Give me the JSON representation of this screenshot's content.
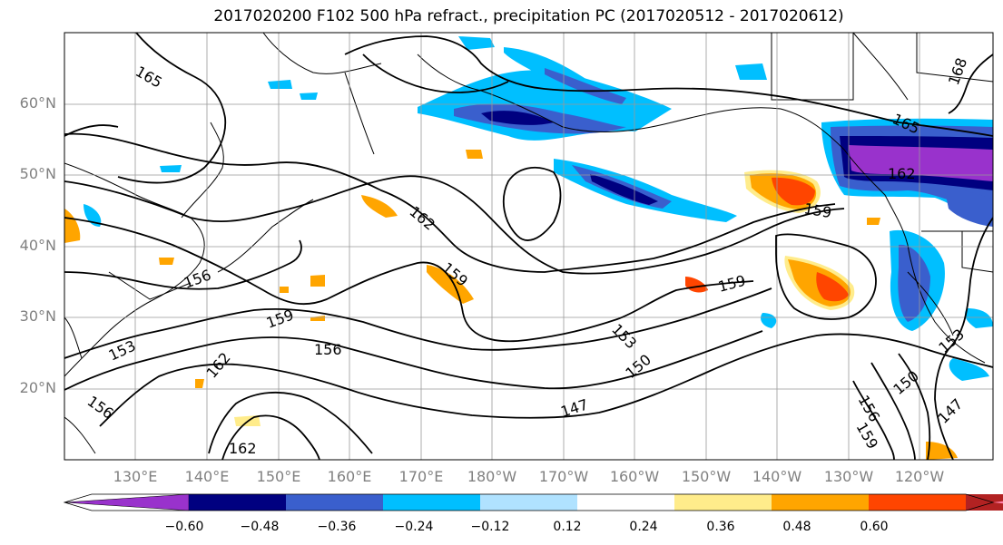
{
  "title": "2017020200 F102 500 hPa refract., precipitation PC (2017020512 - 2017020612)",
  "lat_labels": [
    "60°N",
    "50°N",
    "40°N",
    "30°N",
    "20°N"
  ],
  "lon_labels": [
    "130°E",
    "140°E",
    "150°E",
    "160°E",
    "170°E",
    "180°W",
    "170°W",
    "160°W",
    "150°W",
    "140°W",
    "130°W",
    "120°W"
  ],
  "contour_labels": [
    "165",
    "162",
    "159",
    "159",
    "159",
    "156",
    "156",
    "153",
    "153",
    "150",
    "147",
    "162",
    "162",
    "156",
    "168",
    "165",
    "162",
    "159",
    "153",
    "150",
    "147",
    "156",
    "159"
  ],
  "colorbar": {
    "colors": [
      "#9932CC",
      "#000080",
      "#3A5FCD",
      "#00BFFF",
      "#B0E2FF",
      "#FFFFFF",
      "#FFEC8B",
      "#FFA500",
      "#FF4500",
      "#B22222",
      "#FF82AB"
    ],
    "ticks": [
      "−0.60",
      "−0.48",
      "−0.36",
      "−0.24",
      "−0.12",
      "0.12",
      "0.24",
      "0.36",
      "0.48",
      "0.60"
    ]
  }
}
